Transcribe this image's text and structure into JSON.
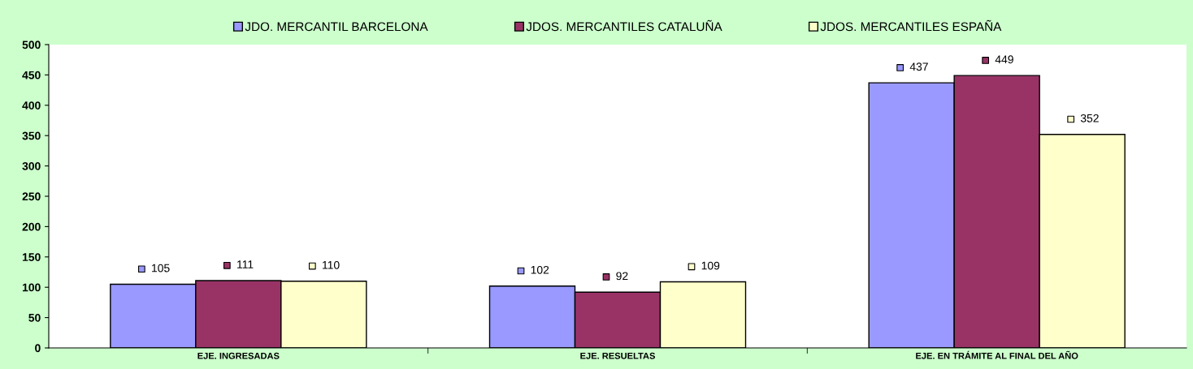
{
  "chart_data": {
    "type": "bar",
    "categories": [
      "EJE. INGRESADAS",
      "EJE. RESUELTAS",
      "EJE. EN TRÁMITE AL FINAL DEL AÑO"
    ],
    "series": [
      {
        "name": "JDO. MERCANTIL BARCELONA",
        "color": "#9999ff",
        "values": [
          105,
          102,
          437
        ]
      },
      {
        "name": "JDOS. MERCANTILES CATALUÑA",
        "color": "#993366",
        "values": [
          111,
          92,
          449
        ]
      },
      {
        "name": "JDOS. MERCANTILES ESPAÑA",
        "color": "#ffffcc",
        "values": [
          110,
          109,
          352
        ]
      }
    ],
    "ylim": [
      0,
      500
    ],
    "yticks": [
      0,
      50,
      100,
      150,
      200,
      250,
      300,
      350,
      400,
      450,
      500
    ],
    "data_labels": true,
    "legend": "top",
    "grid": false
  }
}
